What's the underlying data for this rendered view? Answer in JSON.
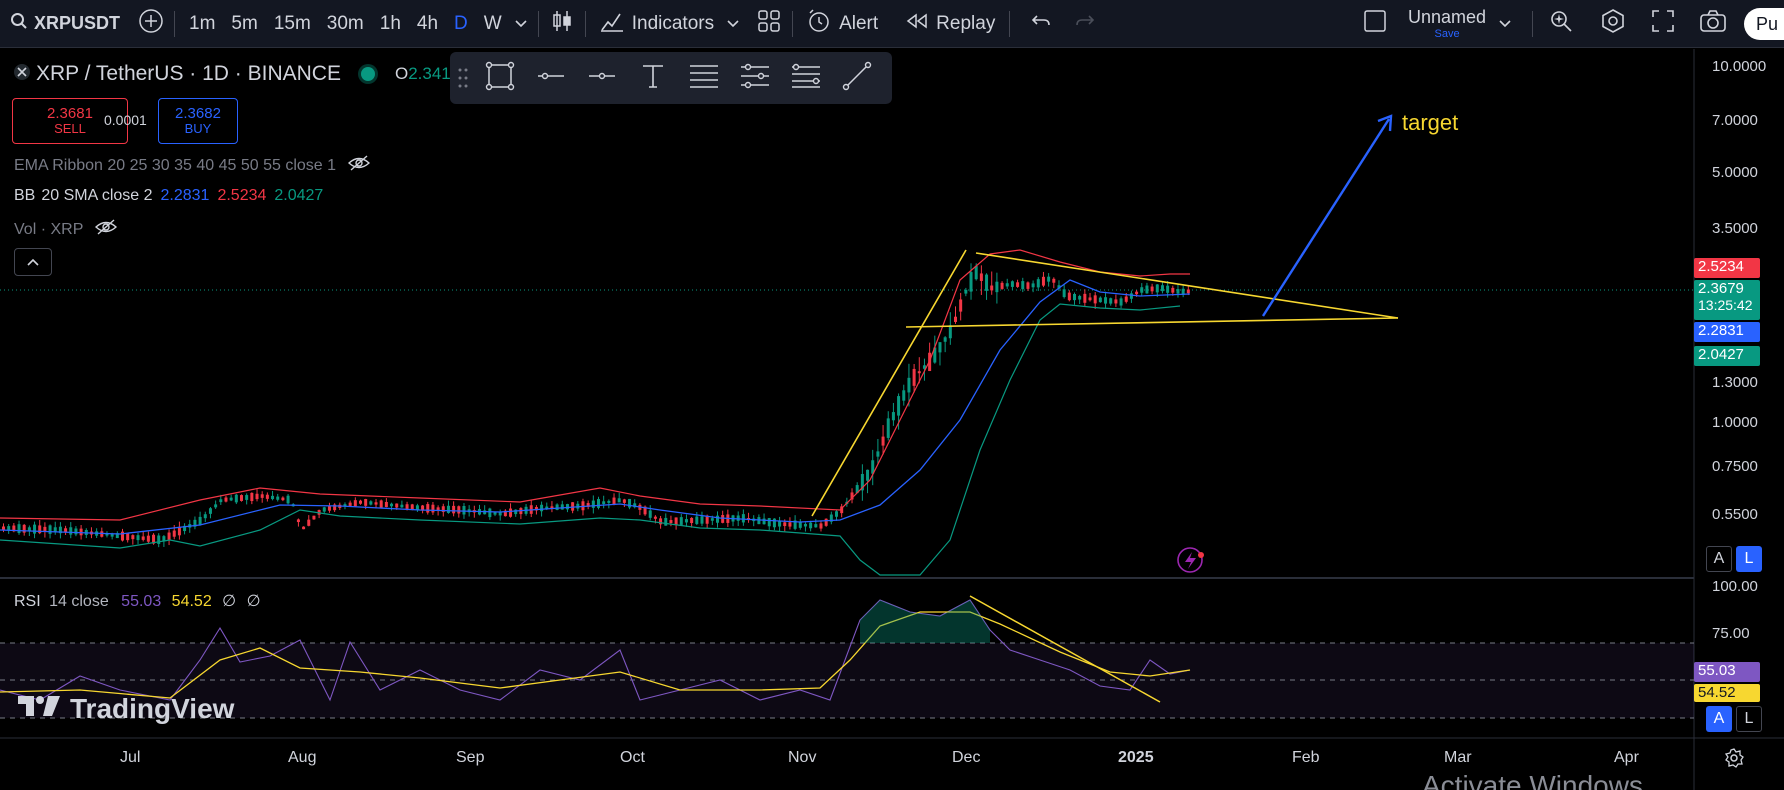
{
  "toolbar": {
    "symbol": "XRPUSDT",
    "timeframes": [
      "1m",
      "5m",
      "15m",
      "30m",
      "1h",
      "4h",
      "D",
      "W"
    ],
    "active_timeframe": "D",
    "indicators_label": "Indicators",
    "alert_label": "Alert",
    "replay_label": "Replay",
    "layout_name": "Unnamed",
    "layout_save": "Save",
    "publish_label": "Pu"
  },
  "header": {
    "title": "XRP / TetherUS · 1D · BINANCE",
    "ohlc_open_label": "O",
    "ohlc_open_value": "2.341"
  },
  "trade": {
    "sell_price": "2.3681",
    "sell_label": "SELL",
    "spread": "0.0001",
    "buy_price": "2.3682",
    "buy_label": "BUY"
  },
  "indicators": {
    "ema_ribbon": "EMA Ribbon 20 25 30 35 40 45 50 55 close 1",
    "bb_label": "BB",
    "bb_params": "20 SMA close 2",
    "bb_basis": "2.2831",
    "bb_upper": "2.5234",
    "bb_lower": "2.0427",
    "vol_label": "Vol · XRP"
  },
  "rsi": {
    "label": "RSI",
    "params": "14 close",
    "value": "55.03",
    "ma_value": "54.52",
    "extra1": "∅",
    "extra2": "∅"
  },
  "price_axis": {
    "labels": [
      "10.0000",
      "7.0000",
      "5.0000",
      "3.5000",
      "1.3000",
      "1.0000",
      "0.7500",
      "0.5500"
    ],
    "rsi_labels": [
      "100.00",
      "75.00"
    ],
    "badges": {
      "upper": "2.5234",
      "last": "2.3679",
      "countdown": "13:25:42",
      "basis": "2.2831",
      "lower": "2.0427",
      "rsi": "55.03",
      "rsi_ma": "54.52"
    }
  },
  "time_axis": [
    "Jul",
    "Aug",
    "Sep",
    "Oct",
    "Nov",
    "Dec",
    "2025",
    "Feb",
    "Mar",
    "Apr"
  ],
  "annotations": {
    "target": "target"
  },
  "watermark": "TradingView",
  "os_overlay": "Activate Windows",
  "axis_buttons": {
    "auto": "A",
    "log": "L"
  },
  "colors": {
    "up": "#089981",
    "down": "#f23645",
    "bb_basis": "#2962ff",
    "bb_upper": "#f23645",
    "bb_lower": "#089981",
    "drawing": "#f7d730",
    "arrow": "#2962ff",
    "rsi_line": "#7e57c2",
    "rsi_ma": "#f7d730"
  }
}
